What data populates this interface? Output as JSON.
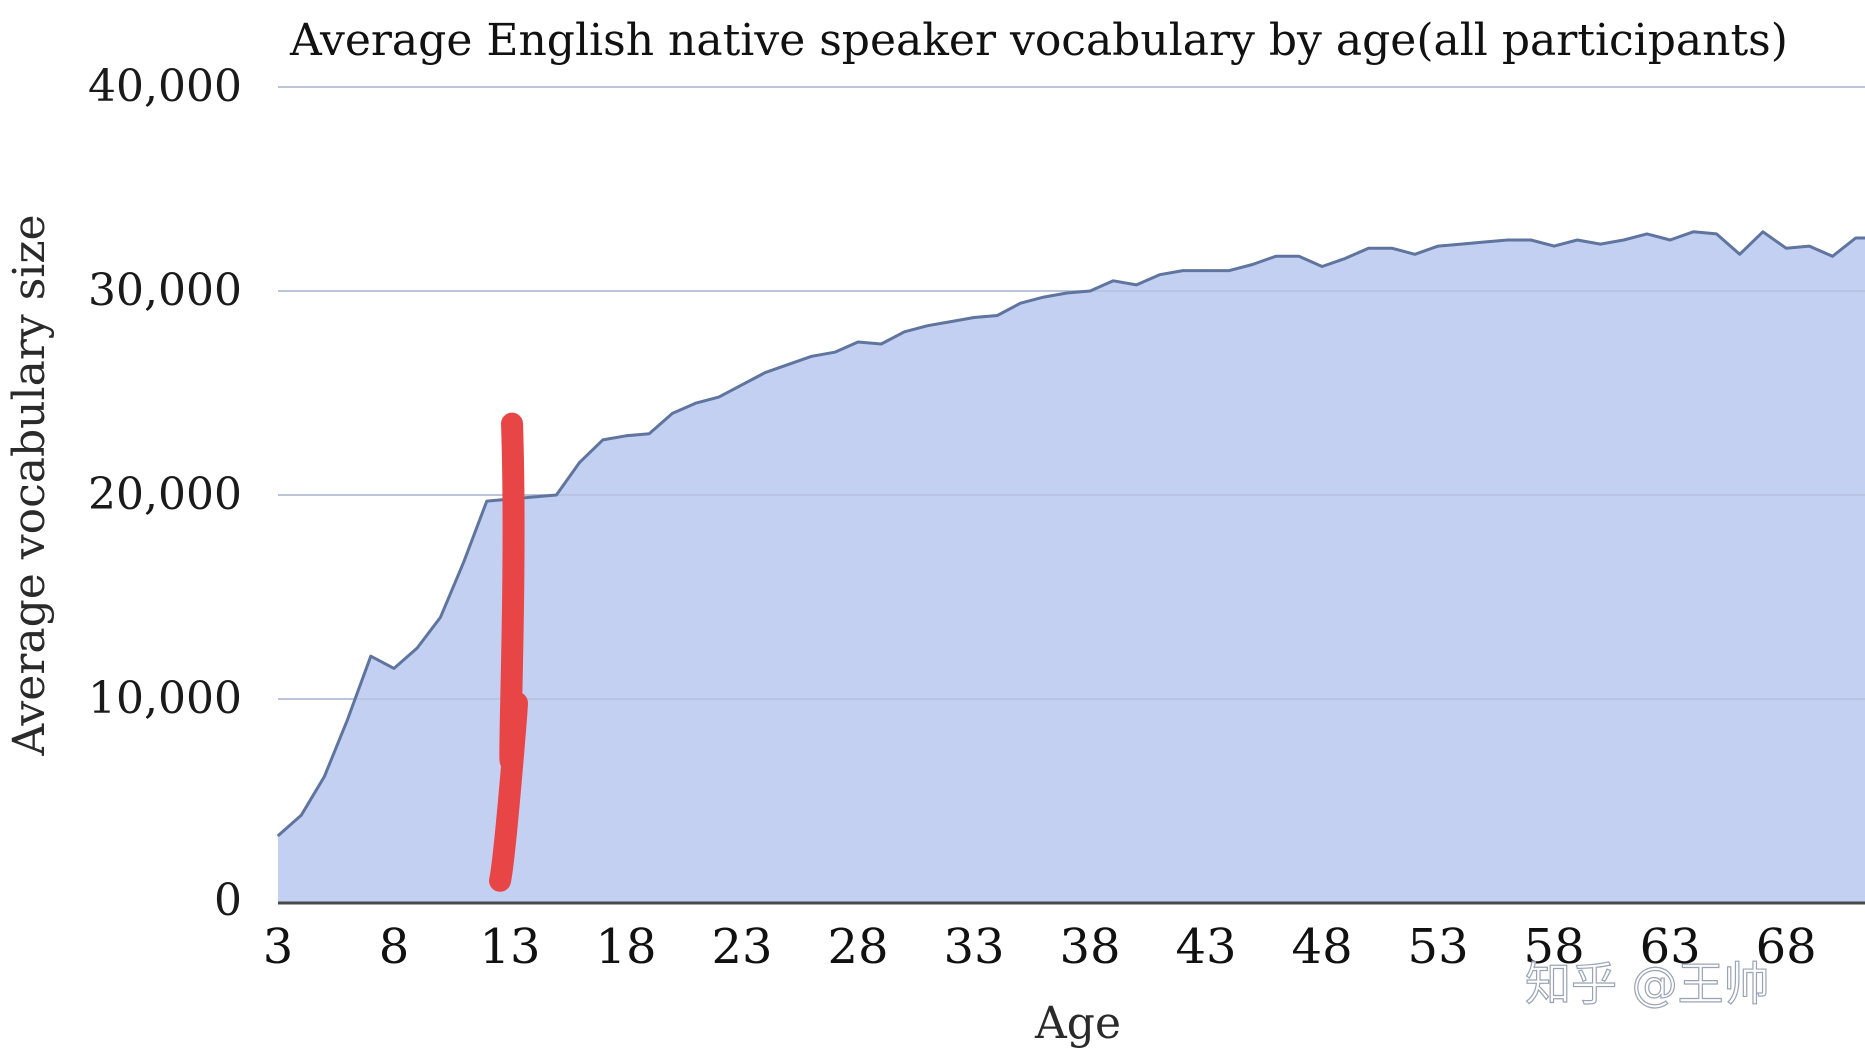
{
  "chart_data": {
    "type": "area",
    "title": "Average English native speaker vocabulary by age(all participants)",
    "xlabel": "Age",
    "ylabel": "Average vocabulary size",
    "ylim": [
      0,
      40000
    ],
    "xlim": [
      3,
      71.4
    ],
    "yticks": [
      0,
      10000,
      20000,
      30000,
      40000
    ],
    "ytick_labels": [
      "0",
      "10,000",
      "20,000",
      "30,000",
      "40,000"
    ],
    "xticks": [
      3,
      8,
      13,
      18,
      23,
      28,
      33,
      38,
      43,
      48,
      53,
      58,
      63,
      68
    ],
    "xtick_labels": [
      "3",
      "8",
      "13",
      "18",
      "23",
      "28",
      "33",
      "38",
      "43",
      "48",
      "53",
      "58",
      "63",
      "68"
    ],
    "grid": true,
    "series": [
      {
        "x": [
          3,
          4,
          5,
          6,
          7,
          8,
          9,
          10,
          11,
          12,
          13,
          14,
          15,
          16,
          17,
          18,
          19,
          20,
          21,
          22,
          23,
          24,
          25,
          26,
          27,
          28,
          29,
          30,
          31,
          32,
          33,
          34,
          35,
          36,
          37,
          38,
          39,
          40,
          41,
          42,
          43,
          44,
          45,
          46,
          47,
          48,
          49,
          50,
          51,
          52,
          53,
          54,
          55,
          56,
          57,
          58,
          59,
          60,
          61,
          62,
          63,
          64,
          65,
          66,
          67,
          68,
          69,
          70,
          71
        ],
        "values": [
          3300,
          4300,
          6200,
          9000,
          12100,
          11500,
          12500,
          14000,
          16700,
          19700,
          19800,
          19900,
          20000,
          21600,
          22700,
          22900,
          23000,
          24000,
          24500,
          24800,
          25400,
          26000,
          26400,
          26800,
          27000,
          27500,
          27400,
          28000,
          28300,
          28500,
          28700,
          28800,
          29400,
          29700,
          29900,
          30000,
          30500,
          30300,
          30800,
          31000,
          31000,
          31000,
          31300,
          31700,
          31700,
          31200,
          31600,
          32100,
          32100,
          31800,
          32200,
          32300,
          32400,
          32500,
          32500,
          32200,
          32500,
          32300,
          32500,
          32800,
          32500,
          32900,
          32800,
          31800,
          32900,
          32100,
          32200,
          31700,
          32600
        ],
        "color": "#c3d0f2"
      }
    ],
    "annotations": [
      {
        "type": "vertical-marker",
        "x": 13,
        "y_from": 500,
        "y_to": 23500,
        "color": "#e84646"
      }
    ],
    "colors": {
      "fill": "#c3d0f2",
      "line": "#5f749e",
      "grid": "#d2d2d2",
      "axis": "#4a4a4a",
      "marker": "#e84646"
    }
  },
  "watermark": {
    "text": "知乎 @王帅"
  }
}
